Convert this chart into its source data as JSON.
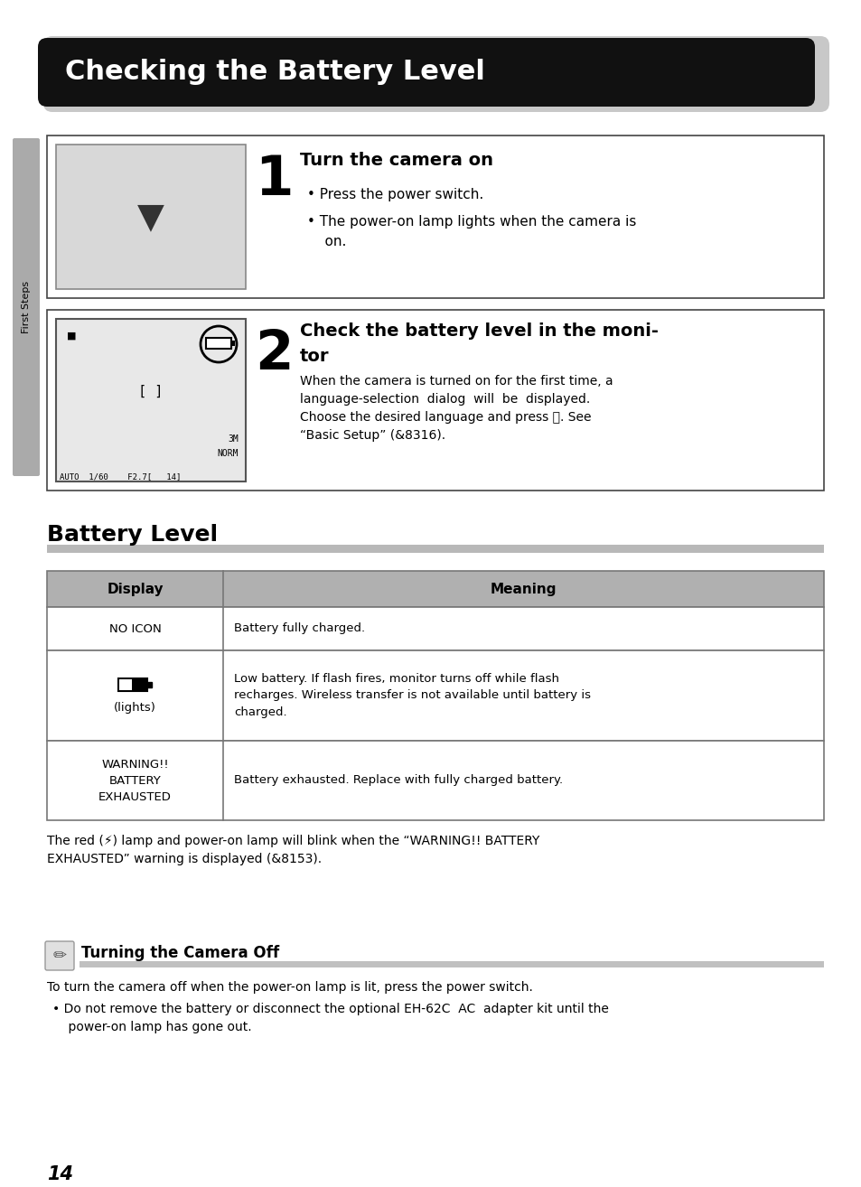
{
  "bg_color": "#ffffff",
  "title": "Checking the Battery Level",
  "section2_title": "Battery Level",
  "step1_heading": "Turn the camera on",
  "step1_bullet1": "Press the power switch.",
  "step1_bullet2": "The power-on lamp lights when the camera is\n    on.",
  "step2_heading_line1": "Check the battery level in the moni-",
  "step2_heading_line2": "tor",
  "step2_body": "When the camera is turned on for the first time, a\nlanguage-selection  dialog  will  be  displayed.\nChoose the desired language and press ⓞ. See\n“Basic Setup” (&8316).",
  "table_col1_header": "Display",
  "table_col2_header": "Meaning",
  "row1_col1": "NO ICON",
  "row1_col2": "Battery fully charged.",
  "row2_col1": "(lights)",
  "row2_col2": "Low battery. If flash fires, monitor turns off while flash\nrecharges. Wireless transfer is not available until battery is\ncharged.",
  "row3_col1": "WARNING!!\nBATTERY\nEXHAUSTED",
  "row3_col2": "Battery exhausted. Replace with fully charged battery.",
  "note_line1": "The red (⚡) lamp and power-on lamp will blink when the “WARNING!! BATTERY",
  "note_line2": "EXHAUSTED” warning is displayed (&8153).",
  "tip_title": "Turning the Camera Off",
  "tip_body1": "To turn the camera off when the power-on lamp is lit, press the power switch.",
  "tip_bullet": "Do not remove the battery or disconnect the optional EH-62C  AC  adapter kit until the\n    power-on lamp has gone out.",
  "page_num": "14",
  "sidebar_text": "First Steps",
  "title_font_size": 22,
  "body_font_size": 10,
  "small_font_size": 9
}
